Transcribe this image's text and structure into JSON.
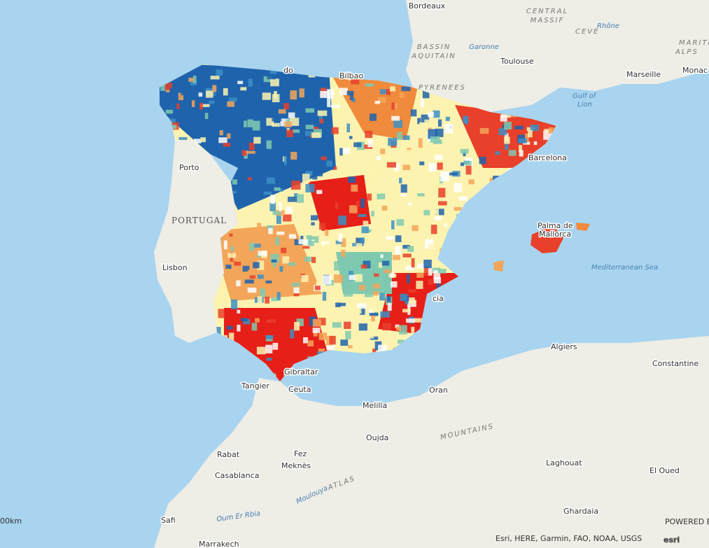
{
  "labels": [
    "Bordeaux",
    "CENTRAL",
    "MASSIF",
    "BASSIN",
    "AQUITAIN",
    "Garonne",
    "Toulouse",
    "CEVE",
    "Rhône",
    "MARITIME",
    "ALPS",
    "Monac",
    "Marseille",
    "Gulf of",
    "Lion",
    "PYRENEES",
    "do",
    "Bilbao",
    "Porto",
    "PORTUGAL",
    "Lisbon",
    "Barcelona",
    "Palma de",
    "Mallorca",
    "Mediterranean Sea",
    "cia",
    "Gibraltar",
    "Tangier",
    "Ceuta",
    "Algiers",
    "Constantine",
    "Oran",
    "Melilla",
    "Oujda",
    "Rabat",
    "Fez",
    "Meknès",
    "Casablanca",
    "Laghouat",
    "El Oued",
    "MOUNTAINS",
    "ATLAS",
    "Ghardaia",
    "Safi",
    "Marrakech",
    "Oum Er Rbia",
    "Moulouya",
    "00km",
    "Esri, HERE, Garmin, FAO, NOAA, USGS",
    "POWERED BY",
    "esri"
  ]
}
